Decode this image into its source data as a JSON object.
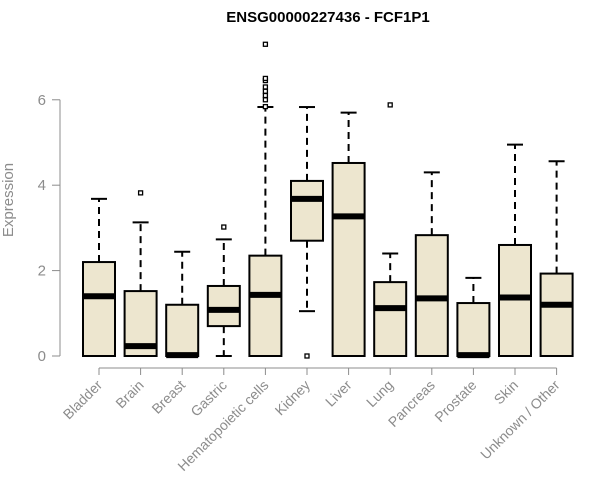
{
  "chart_data": {
    "type": "box",
    "title": "ENSG00000227436 - FCF1P1",
    "xlabel": "",
    "ylabel": "Expression",
    "ylim": [
      0,
      7.4
    ],
    "yticks": [
      0,
      2,
      4,
      6
    ],
    "box_fill": "#ede6cf",
    "box_stroke": "#000000",
    "axis_color": "#8c8c8c",
    "categories": [
      "Bladder",
      "Brain",
      "Breast",
      "Gastric",
      "Hematopoietic cells",
      "Kidney",
      "Liver",
      "Lung",
      "Pancreas",
      "Prostate",
      "Skin",
      "Unknown / Other"
    ],
    "boxes": [
      {
        "category": "Bladder",
        "min": 0,
        "q1": 0,
        "median": 1.4,
        "q3": 2.2,
        "max": 3.68,
        "outliers": []
      },
      {
        "category": "Brain",
        "min": 0,
        "q1": 0,
        "median": 0.23,
        "q3": 1.52,
        "max": 3.13,
        "outliers": [
          3.82
        ]
      },
      {
        "category": "Breast",
        "min": 0,
        "q1": 0,
        "median": 0.02,
        "q3": 1.2,
        "max": 2.44,
        "outliers": []
      },
      {
        "category": "Gastric",
        "min": 0,
        "q1": 0.7,
        "median": 1.08,
        "q3": 1.64,
        "max": 2.73,
        "outliers": [
          3.02
        ]
      },
      {
        "category": "Hematopoietic cells",
        "min": 0,
        "q1": 0,
        "median": 1.43,
        "q3": 2.35,
        "max": 5.83,
        "outliers": [
          5.84,
          6.0,
          6.1,
          6.2,
          6.3,
          6.45,
          6.5,
          7.3
        ]
      },
      {
        "category": "Kidney",
        "min": 1.05,
        "q1": 2.7,
        "median": 3.68,
        "q3": 4.1,
        "max": 5.83,
        "outliers": [
          0
        ]
      },
      {
        "category": "Liver",
        "min": 0,
        "q1": 0,
        "median": 3.27,
        "q3": 4.52,
        "max": 5.7,
        "outliers": []
      },
      {
        "category": "Lung",
        "min": 0,
        "q1": 0,
        "median": 1.12,
        "q3": 1.73,
        "max": 2.4,
        "outliers": [
          5.88
        ]
      },
      {
        "category": "Pancreas",
        "min": 0,
        "q1": 0,
        "median": 1.35,
        "q3": 2.83,
        "max": 4.3,
        "outliers": []
      },
      {
        "category": "Prostate",
        "min": 0,
        "q1": 0,
        "median": 0.02,
        "q3": 1.24,
        "max": 1.83,
        "outliers": []
      },
      {
        "category": "Skin",
        "min": 0,
        "q1": 0,
        "median": 1.37,
        "q3": 2.6,
        "max": 4.95,
        "outliers": []
      },
      {
        "category": "Unknown / Other",
        "min": 0,
        "q1": 0,
        "median": 1.2,
        "q3": 1.93,
        "max": 4.56,
        "outliers": []
      }
    ]
  }
}
